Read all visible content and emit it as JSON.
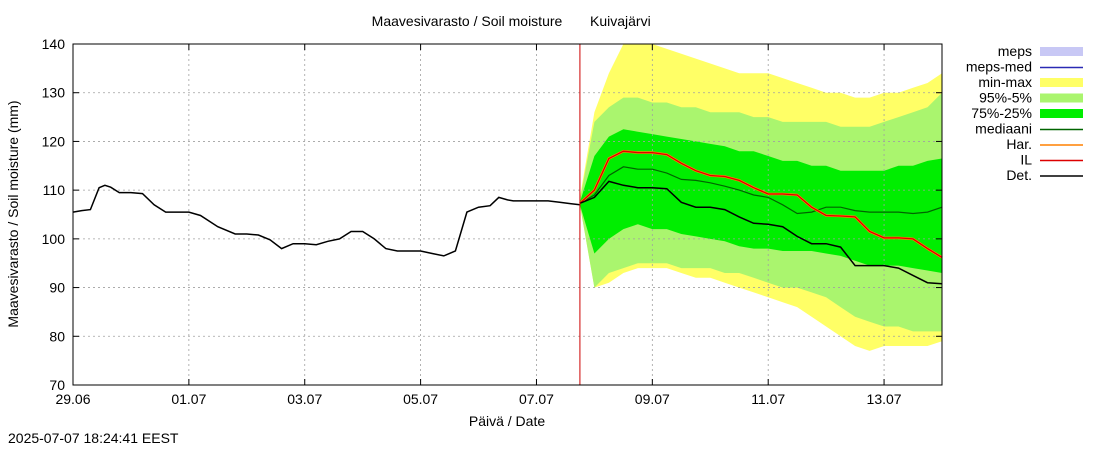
{
  "chart_data": {
    "type": "line",
    "title": "Maavesivarasto / Soil moisture",
    "location": "Kuivajärvi",
    "xlabel": "Päivä / Date",
    "ylabel": "Maavesivarasto / Soil moisture (mm)",
    "xlim": [
      0,
      15
    ],
    "ylim": [
      70,
      140
    ],
    "grid": true,
    "legend_position": "right",
    "x_tick_values": [
      0,
      2,
      4,
      6,
      8,
      10,
      12,
      14
    ],
    "x_tick_labels": [
      "29.06",
      "01.07",
      "03.07",
      "05.07",
      "07.07",
      "09.07",
      "11.07",
      "13.07"
    ],
    "y_ticks": [
      70,
      80,
      90,
      100,
      110,
      120,
      130,
      140
    ],
    "forecast_start_x": 8.75,
    "legend": [
      {
        "label": "meps",
        "kind": "band",
        "color": "#c8c8f5"
      },
      {
        "label": "meps-med",
        "kind": "line",
        "color": "#2a2ab4"
      },
      {
        "label": "min-max",
        "kind": "band",
        "color": "#ffff66"
      },
      {
        "label": "95%-5%",
        "kind": "band",
        "color": "#aaf56e"
      },
      {
        "label": "75%-25%",
        "kind": "band",
        "color": "#00ee00"
      },
      {
        "label": "mediaani",
        "kind": "line",
        "color": "#006400"
      },
      {
        "label": "Har.",
        "kind": "line",
        "color": "#ff8000"
      },
      {
        "label": "IL",
        "kind": "line",
        "color": "#dd0000"
      },
      {
        "label": "Det.",
        "kind": "line",
        "color": "#000000"
      }
    ],
    "colors": {
      "minmax": "#ffff66",
      "p95_5": "#aaf56e",
      "p75_25": "#00ee00",
      "median": "#006400",
      "har": "#ff8000",
      "il": "#dd0000",
      "det": "#000000",
      "forecast_line": "#cc0000",
      "grid": "#a0a0a0"
    },
    "observed": {
      "x": [
        0,
        0.15,
        0.3,
        0.45,
        0.55,
        0.65,
        0.8,
        1.0,
        1.2,
        1.4,
        1.6,
        1.8,
        2.0,
        2.2,
        2.5,
        2.8,
        3.0,
        3.2,
        3.4,
        3.6,
        3.8,
        4.0,
        4.2,
        4.4,
        4.6,
        4.8,
        5.0,
        5.2,
        5.4,
        5.6,
        5.8,
        6.0,
        6.2,
        6.4,
        6.6,
        6.8,
        7.0,
        7.2,
        7.35,
        7.5,
        7.6,
        7.8,
        8.0,
        8.2,
        8.4,
        8.6,
        8.75
      ],
      "y": [
        105.5,
        105.8,
        106.0,
        110.5,
        111.0,
        110.6,
        109.5,
        109.5,
        109.3,
        107.0,
        105.5,
        105.5,
        105.5,
        104.8,
        102.5,
        101.0,
        101.0,
        100.8,
        99.8,
        98.0,
        99.0,
        99.0,
        98.8,
        99.5,
        100.0,
        101.5,
        101.5,
        100.0,
        98.0,
        97.5,
        97.5,
        97.5,
        97.0,
        96.5,
        97.5,
        105.5,
        106.5,
        106.8,
        108.5,
        108.0,
        107.8,
        107.8,
        107.8,
        107.8,
        107.5,
        107.2,
        107.0
      ]
    },
    "forecast_x": [
      8.75,
      9.0,
      9.25,
      9.5,
      9.75,
      10.0,
      10.25,
      10.5,
      10.75,
      11.0,
      11.25,
      11.5,
      11.75,
      12.0,
      12.25,
      12.5,
      12.75,
      13.0,
      13.25,
      13.5,
      13.75,
      14.0,
      14.25,
      14.5,
      14.75,
      15.0
    ],
    "series": [
      {
        "key": "minmax_upper",
        "values": [
          108.5,
          126,
          134,
          140,
          140,
          140,
          139,
          138,
          137,
          136,
          135,
          134,
          134,
          134,
          133,
          132,
          131,
          130,
          130,
          129,
          129,
          130,
          130,
          131,
          132,
          134
        ]
      },
      {
        "key": "minmax_lower",
        "values": [
          107,
          90,
          91,
          93,
          94,
          94,
          94,
          93,
          92,
          92,
          91,
          90,
          89,
          88,
          87,
          86,
          84,
          82,
          80,
          78,
          77,
          78,
          78,
          78,
          78,
          79
        ]
      },
      {
        "key": "p95_upper",
        "values": [
          108,
          124,
          127,
          129,
          129,
          128,
          128,
          127,
          127,
          126,
          126,
          126,
          125,
          125,
          124,
          124,
          124,
          124,
          123,
          123,
          123,
          124,
          125,
          126,
          127,
          130
        ]
      },
      {
        "key": "p95_lower",
        "values": [
          107,
          90,
          93,
          94,
          95,
          95,
          95,
          94,
          94,
          94,
          93,
          93,
          92,
          91,
          90,
          90,
          89,
          88,
          86,
          84,
          83,
          82,
          82,
          81,
          81,
          81
        ]
      },
      {
        "key": "p75_upper",
        "values": [
          107.5,
          117,
          121,
          122.5,
          122,
          121.5,
          121,
          120.5,
          120,
          119.5,
          119,
          118,
          118,
          117,
          116,
          116,
          115,
          115,
          114,
          114,
          114,
          114,
          115,
          115,
          116,
          116.5
        ]
      },
      {
        "key": "p75_lower",
        "values": [
          107.0,
          97,
          100,
          102,
          103,
          102,
          102,
          101,
          100.5,
          100,
          99.5,
          98.5,
          98,
          98,
          97.5,
          97.5,
          97.5,
          97,
          96.5,
          95.5,
          94.5,
          94.5,
          94.5,
          94,
          93.5,
          93
        ]
      },
      {
        "key": "median",
        "values": [
          107.3,
          109,
          113,
          114.8,
          114.3,
          114.3,
          113.5,
          112.2,
          112,
          111.5,
          110.8,
          110,
          109.0,
          108.5,
          107.0,
          105.2,
          105.5,
          106.5,
          106.5,
          105.8,
          105.5,
          105.5,
          105.5,
          105.2,
          105.5,
          106.5
        ]
      },
      {
        "key": "har",
        "values": [
          107.3,
          110,
          116.5,
          118.0,
          117.7,
          117.7,
          117.3,
          115.5,
          114.0,
          113.0,
          112.8,
          112.0,
          110.5,
          109.2,
          109.2,
          109.0,
          106.5,
          104.8,
          104.7,
          104.5,
          101.5,
          100.2,
          100.2,
          100.0,
          98.0,
          96.2
        ]
      },
      {
        "key": "il",
        "values": [
          107.3,
          110,
          116.5,
          118.0,
          117.7,
          117.7,
          117.3,
          115.5,
          114.0,
          113.0,
          112.8,
          112.0,
          110.5,
          109.2,
          109.2,
          109.0,
          106.5,
          104.8,
          104.7,
          104.5,
          101.5,
          100.2,
          100.2,
          100.0,
          98.0,
          96.2
        ]
      },
      {
        "key": "det",
        "values": [
          107.3,
          108.5,
          111.8,
          111.0,
          110.5,
          110.5,
          110.3,
          107.5,
          106.5,
          106.5,
          106.0,
          104.5,
          103.2,
          103.0,
          102.5,
          100.5,
          99.0,
          99.0,
          98.3,
          94.5,
          94.5,
          94.5,
          94.0,
          92.5,
          91.0,
          90.8
        ]
      }
    ]
  },
  "footer": {
    "timestamp": "2025-07-07 18:24:41 EEST"
  }
}
